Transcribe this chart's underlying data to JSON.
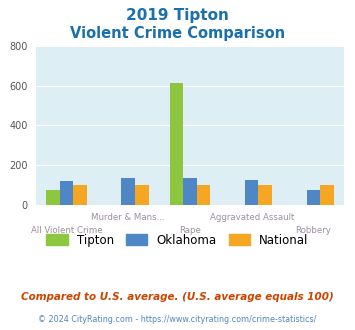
{
  "title_line1": "2019 Tipton",
  "title_line2": "Violent Crime Comparison",
  "categories": [
    "All Violent Crime",
    "Murder & Mans...",
    "Rape",
    "Aggravated Assault",
    "Robbery"
  ],
  "top_labels": [
    "",
    "Murder & Mans...",
    "",
    "Aggravated Assault",
    ""
  ],
  "bottom_labels": [
    "All Violent Crime",
    "",
    "Rape",
    "",
    "Robbery"
  ],
  "tipton": [
    75,
    0,
    615,
    0,
    0
  ],
  "oklahoma": [
    120,
    135,
    135,
    125,
    75
  ],
  "national": [
    100,
    100,
    100,
    100,
    100
  ],
  "tipton_color": "#8dc63f",
  "oklahoma_color": "#4f86c6",
  "national_color": "#f5a623",
  "bg_plot_color": "#ddeef4",
  "title_color": "#1a6fad",
  "xlabel_color": "#9b8ea0",
  "legend_tipton": "Tipton",
  "legend_oklahoma": "Oklahoma",
  "legend_national": "National",
  "footer_text": "Compared to U.S. average. (U.S. average equals 100)",
  "copyright_text": "© 2024 CityRating.com - https://www.cityrating.com/crime-statistics/",
  "ylim": [
    0,
    800
  ],
  "yticks": [
    0,
    200,
    400,
    600,
    800
  ],
  "bar_width": 0.22,
  "figsize": [
    3.55,
    3.3
  ],
  "dpi": 100
}
